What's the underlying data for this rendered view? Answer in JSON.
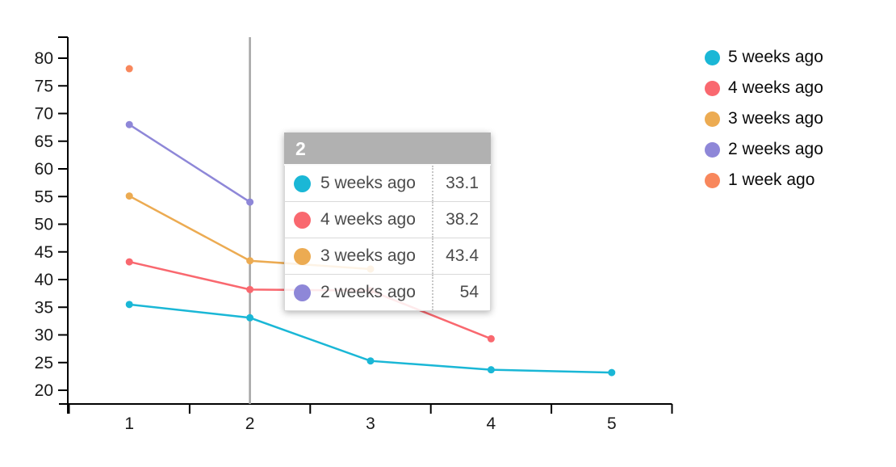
{
  "chart_data": {
    "type": "line",
    "title": "",
    "xlabel": "",
    "ylabel": "",
    "x_ticks": [
      1,
      2,
      3,
      4,
      5
    ],
    "y_ticks": [
      20,
      25,
      30,
      35,
      40,
      45,
      50,
      55,
      60,
      65,
      70,
      75,
      80
    ],
    "xlim": [
      0.5,
      5.5
    ],
    "ylim": [
      17.5,
      83.8
    ],
    "grid": false,
    "legend_position": "right",
    "series": [
      {
        "name": "5 weeks ago",
        "color": "#1ab7d6",
        "x": [
          1,
          2,
          3,
          4,
          5
        ],
        "values": [
          35.5,
          33.1,
          25.3,
          23.7,
          23.2
        ]
      },
      {
        "name": "4 weeks ago",
        "color": "#f9686f",
        "x": [
          1,
          2,
          3,
          4
        ],
        "values": [
          43.2,
          38.2,
          38.0,
          29.3
        ]
      },
      {
        "name": "3 weeks ago",
        "color": "#ecab52",
        "x": [
          1,
          2,
          3
        ],
        "values": [
          55.1,
          43.4,
          41.9
        ]
      },
      {
        "name": "2 weeks ago",
        "color": "#8e87d8",
        "x": [
          1,
          2
        ],
        "values": [
          68.0,
          54
        ]
      },
      {
        "name": "1 week ago",
        "color": "#f8875c",
        "x": [
          1
        ],
        "values": [
          78.1
        ]
      }
    ],
    "marker_line": {
      "x": 2,
      "color": "#a5a5a5"
    }
  },
  "tooltip": {
    "title": "2",
    "header_bg": "#b1b1b1",
    "rows": [
      {
        "label": "5 weeks ago",
        "value": "33.1",
        "color": "#1ab7d6"
      },
      {
        "label": "4 weeks ago",
        "value": "38.2",
        "color": "#f9686f"
      },
      {
        "label": "3 weeks ago",
        "value": "43.4",
        "color": "#ecab52"
      },
      {
        "label": "2 weeks ago",
        "value": "54",
        "color": "#8e87d8"
      }
    ]
  },
  "legend": {
    "items": [
      {
        "label": "5 weeks ago",
        "color": "#1ab7d6"
      },
      {
        "label": "4 weeks ago",
        "color": "#f9686f"
      },
      {
        "label": "3 weeks ago",
        "color": "#ecab52"
      },
      {
        "label": "2 weeks ago",
        "color": "#8e87d8"
      },
      {
        "label": "1 week ago",
        "color": "#f8875c"
      }
    ]
  },
  "colors": {
    "axis_line": "#000000",
    "tick_label": "#1a1a1a",
    "marker_line": "#a5a5a5",
    "tooltip_header_bg": "#b1b1b1",
    "tooltip_text": "#4b4b4b",
    "tooltip_border": "#d9d9d9"
  }
}
